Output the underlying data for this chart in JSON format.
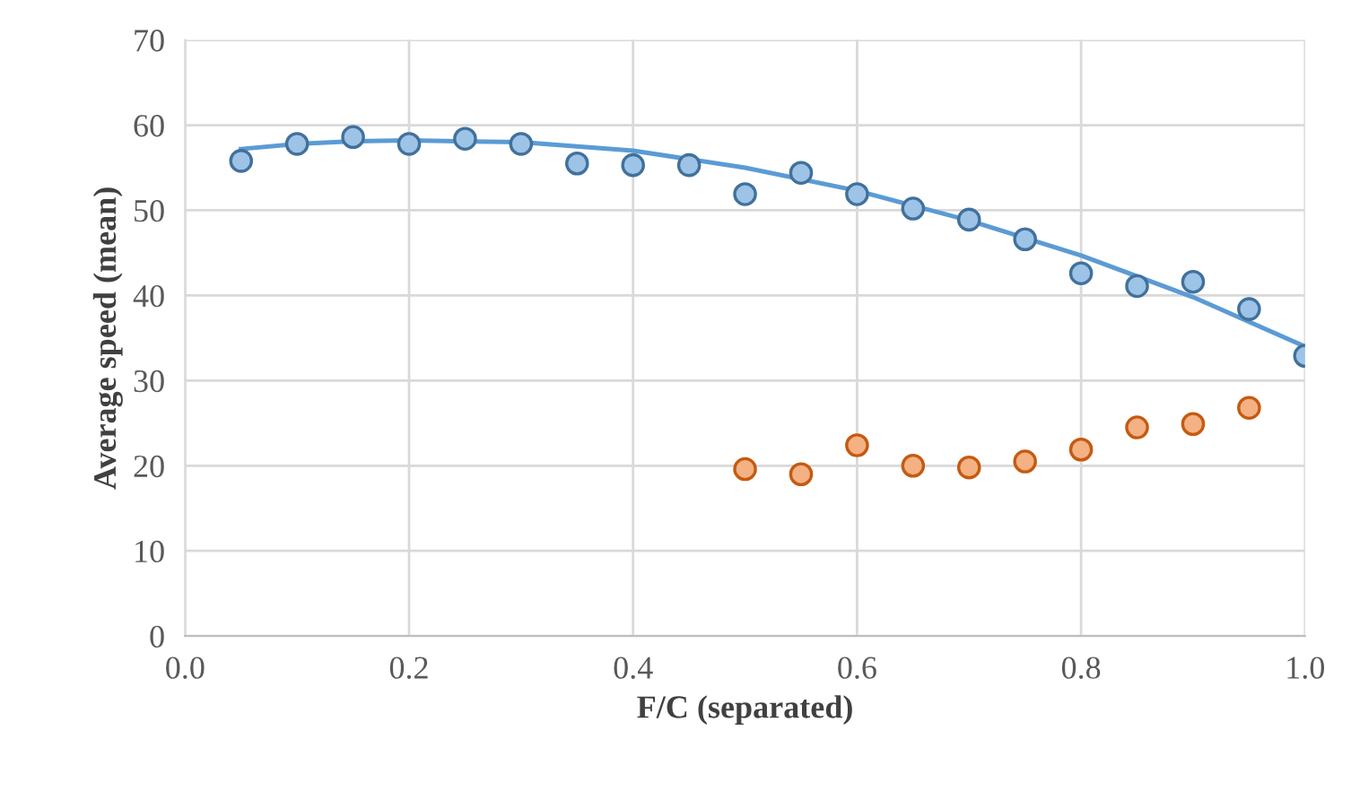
{
  "chart_data": {
    "type": "scatter",
    "xlabel": "F/C (separated)",
    "ylabel": "Average speed (mean)",
    "xlim": [
      0.0,
      1.0
    ],
    "xticks": [
      {
        "value": 0,
        "label": "0.0"
      },
      0.2,
      0.4,
      0.6,
      0.8,
      {
        "value": 1,
        "label": "1.0"
      }
    ],
    "ylim": [
      0,
      70
    ],
    "yticks": [
      0,
      10,
      20,
      30,
      40,
      50,
      60,
      70
    ],
    "grid": true,
    "series": [
      {
        "type": "line",
        "marker": "none",
        "color": "#5b9bd5",
        "x": [
          0.05,
          0.1,
          0.15,
          0.2,
          0.3,
          0.4,
          0.5,
          0.6,
          0.7,
          0.8,
          0.9,
          1.0
        ],
        "values": [
          57.2,
          57.8,
          58.1,
          58.2,
          58.0,
          57.0,
          55.0,
          52.3,
          48.8,
          44.7,
          39.8,
          34.0
        ]
      },
      {
        "marker": "circle",
        "color": "#9dc3e6",
        "x": [
          0.05,
          0.1,
          0.15,
          0.2,
          0.25,
          0.3,
          0.35,
          0.4,
          0.45,
          0.5,
          0.55,
          0.6,
          0.65,
          0.7,
          0.75,
          0.8,
          0.85,
          0.9,
          0.95,
          1.0
        ],
        "values": [
          55.8,
          57.8,
          58.6,
          57.8,
          58.4,
          57.8,
          55.5,
          55.3,
          55.3,
          51.9,
          54.4,
          51.9,
          50.2,
          48.9,
          46.6,
          42.6,
          41.1,
          41.6,
          38.4,
          32.9
        ]
      },
      {
        "marker": "circle",
        "color": "#f4b183",
        "x": [
          0.5,
          0.55,
          0.6,
          0.65,
          0.7,
          0.75,
          0.8,
          0.85,
          0.9,
          0.95
        ],
        "values": [
          19.6,
          19.0,
          22.4,
          20.0,
          19.8,
          20.5,
          21.9,
          24.5,
          24.9,
          26.8
        ]
      }
    ]
  }
}
